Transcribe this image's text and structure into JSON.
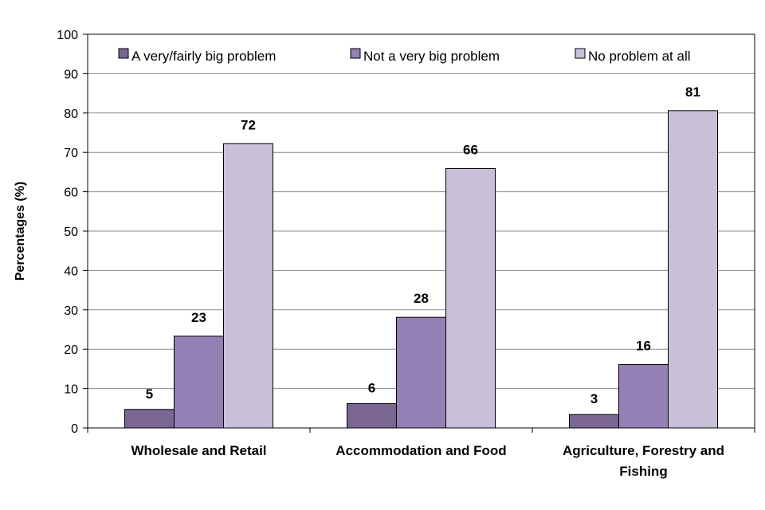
{
  "chart_data": {
    "type": "bar",
    "title": "",
    "xlabel": "",
    "ylabel": "Percentages (%)",
    "ylim": [
      0,
      100
    ],
    "yticks": [
      0,
      10,
      20,
      30,
      40,
      50,
      60,
      70,
      80,
      90,
      100
    ],
    "grid": true,
    "legend_position": "top",
    "categories": [
      [
        "Wholesale and Retail"
      ],
      [
        "Accommodation and Food"
      ],
      [
        "Agriculture, Forestry and",
        "Fishing"
      ]
    ],
    "series": [
      {
        "name": "A very/fairly big problem",
        "values": [
          5,
          6,
          3
        ],
        "display_values": [
          4.7,
          6.2,
          3.4
        ],
        "color": "#7b6592"
      },
      {
        "name": "Not a very big problem",
        "values": [
          23,
          28,
          16
        ],
        "display_values": [
          23.3,
          28.1,
          16.1
        ],
        "color": "#9480b4"
      },
      {
        "name": "No problem at all",
        "values": [
          72,
          66,
          81
        ],
        "display_values": [
          72.2,
          65.9,
          80.6
        ],
        "color": "#c8c0d8"
      }
    ]
  }
}
